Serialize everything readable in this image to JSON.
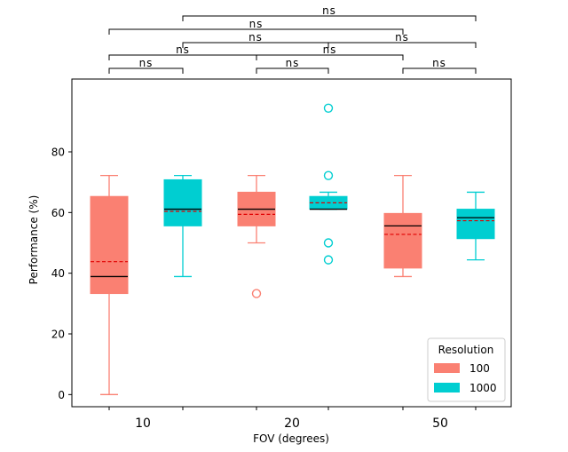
{
  "chart_data": {
    "type": "box",
    "xlabel": "FOV (degrees)",
    "ylabel": "Performance (%)",
    "ylim": [
      -4,
      104
    ],
    "yticks": [
      0,
      20,
      40,
      60,
      80
    ],
    "categories": [
      "10",
      "20",
      "50"
    ],
    "legend": {
      "title": "Resolution",
      "position": "bottom-right",
      "entries": [
        {
          "label": "100",
          "color": "#FA8072"
        },
        {
          "label": "1000",
          "color": "#00CED1"
        }
      ]
    },
    "boxes": [
      {
        "category": "10",
        "series": "100",
        "color": "#FA8072",
        "whislo": 0,
        "q1": 33.3,
        "median": 38.9,
        "q3": 65.3,
        "whishi": 72.2,
        "mean": 43.8,
        "fliers": []
      },
      {
        "category": "10",
        "series": "1000",
        "color": "#00CED1",
        "whislo": 38.9,
        "q1": 55.6,
        "median": 61.1,
        "q3": 70.8,
        "whishi": 72.2,
        "mean": 60.4,
        "fliers": []
      },
      {
        "category": "20",
        "series": "100",
        "color": "#FA8072",
        "whislo": 50.0,
        "q1": 55.6,
        "median": 61.1,
        "q3": 66.7,
        "whishi": 72.2,
        "mean": 59.4,
        "fliers": [
          33.3
        ]
      },
      {
        "category": "20",
        "series": "1000",
        "color": "#00CED1",
        "whislo": 61.1,
        "q1": 61.1,
        "median": 61.1,
        "q3": 65.3,
        "whishi": 66.7,
        "mean": 63.2,
        "fliers": [
          94.4,
          72.2,
          50.0,
          44.4
        ]
      },
      {
        "category": "50",
        "series": "100",
        "color": "#FA8072",
        "whislo": 38.9,
        "q1": 41.7,
        "median": 55.6,
        "q3": 59.7,
        "whishi": 72.2,
        "mean": 52.8,
        "fliers": []
      },
      {
        "category": "50",
        "series": "1000",
        "color": "#00CED1",
        "whislo": 44.4,
        "q1": 51.4,
        "median": 58.3,
        "q3": 61.1,
        "whishi": 66.7,
        "mean": 57.3,
        "fliers": []
      }
    ],
    "significance": [
      {
        "from": 0,
        "to": 1,
        "label": "ns",
        "level": 0
      },
      {
        "from": 2,
        "to": 3,
        "label": "ns",
        "level": 0
      },
      {
        "from": 4,
        "to": 5,
        "label": "ns",
        "level": 0
      },
      {
        "from": 0,
        "to": 2,
        "label": "ns",
        "level": 1
      },
      {
        "from": 1,
        "to": 3,
        "label": "ns",
        "level": 2
      },
      {
        "from": 2,
        "to": 4,
        "label": "ns",
        "level": 1
      },
      {
        "from": 3,
        "to": 5,
        "label": "ns",
        "level": 2
      },
      {
        "from": 0,
        "to": 4,
        "label": "ns",
        "level": 3
      },
      {
        "from": 1,
        "to": 5,
        "label": "ns",
        "level": 4
      }
    ]
  }
}
